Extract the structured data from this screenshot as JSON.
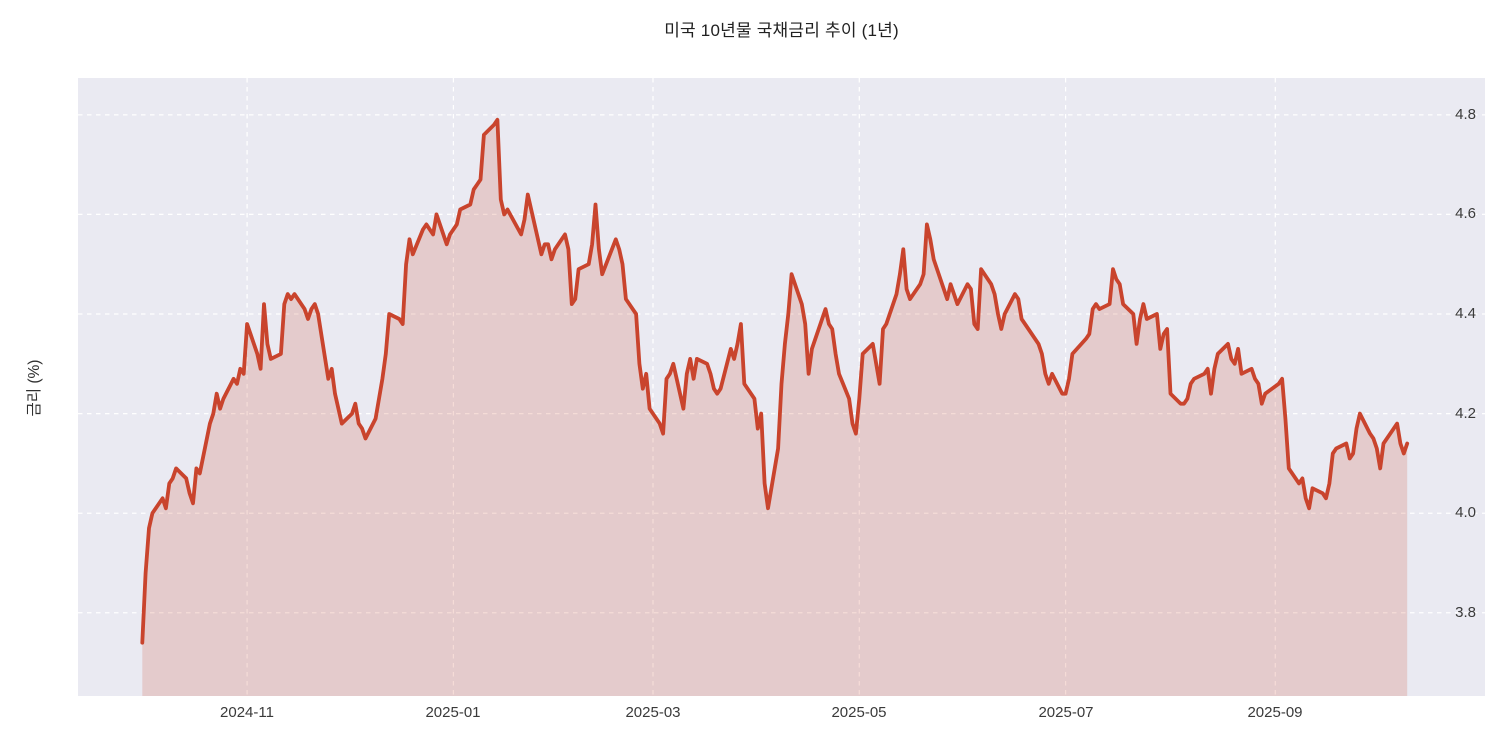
{
  "chart_data": {
    "type": "area",
    "title": "미국 10년물 국채금리 추이 (1년)",
    "xlabel": "",
    "ylabel": "금리 (%)",
    "grid": true,
    "legend": false,
    "xlim": [
      "2024-09-12",
      "2025-11-02"
    ],
    "ylim": [
      3.633,
      4.874
    ],
    "y_ticks": [
      {
        "value": 3.8,
        "label": "3.8"
      },
      {
        "value": 4.0,
        "label": "4.0"
      },
      {
        "value": 4.2,
        "label": "4.2"
      },
      {
        "value": 4.4,
        "label": "4.4"
      },
      {
        "value": 4.6,
        "label": "4.6"
      },
      {
        "value": 4.8,
        "label": "4.8"
      }
    ],
    "x_ticks": [
      {
        "date": "2024-11-01",
        "label": "2024-11"
      },
      {
        "date": "2025-01-01",
        "label": "2025-01"
      },
      {
        "date": "2025-03-01",
        "label": "2025-03"
      },
      {
        "date": "2025-05-01",
        "label": "2025-05"
      },
      {
        "date": "2025-07-01",
        "label": "2025-07"
      },
      {
        "date": "2025-09-01",
        "label": "2025-09"
      }
    ],
    "series": [
      {
        "name": "10년물 국채금리",
        "points": [
          [
            "2024-10-01",
            3.74
          ],
          [
            "2024-10-02",
            3.88
          ],
          [
            "2024-10-03",
            3.97
          ],
          [
            "2024-10-04",
            4.0
          ],
          [
            "2024-10-07",
            4.03
          ],
          [
            "2024-10-08",
            4.01
          ],
          [
            "2024-10-09",
            4.06
          ],
          [
            "2024-10-10",
            4.07
          ],
          [
            "2024-10-11",
            4.09
          ],
          [
            "2024-10-14",
            4.07
          ],
          [
            "2024-10-15",
            4.04
          ],
          [
            "2024-10-16",
            4.02
          ],
          [
            "2024-10-17",
            4.09
          ],
          [
            "2024-10-18",
            4.08
          ],
          [
            "2024-10-21",
            4.18
          ],
          [
            "2024-10-22",
            4.2
          ],
          [
            "2024-10-23",
            4.24
          ],
          [
            "2024-10-24",
            4.21
          ],
          [
            "2024-10-25",
            4.23
          ],
          [
            "2024-10-28",
            4.27
          ],
          [
            "2024-10-29",
            4.26
          ],
          [
            "2024-10-30",
            4.29
          ],
          [
            "2024-10-31",
            4.28
          ],
          [
            "2024-11-01",
            4.38
          ],
          [
            "2024-11-04",
            4.32
          ],
          [
            "2024-11-05",
            4.29
          ],
          [
            "2024-11-06",
            4.42
          ],
          [
            "2024-11-07",
            4.34
          ],
          [
            "2024-11-08",
            4.31
          ],
          [
            "2024-11-11",
            4.32
          ],
          [
            "2024-11-12",
            4.42
          ],
          [
            "2024-11-13",
            4.44
          ],
          [
            "2024-11-14",
            4.43
          ],
          [
            "2024-11-15",
            4.44
          ],
          [
            "2024-11-18",
            4.41
          ],
          [
            "2024-11-19",
            4.39
          ],
          [
            "2024-11-20",
            4.41
          ],
          [
            "2024-11-21",
            4.42
          ],
          [
            "2024-11-22",
            4.4
          ],
          [
            "2024-11-25",
            4.27
          ],
          [
            "2024-11-26",
            4.29
          ],
          [
            "2024-11-27",
            4.24
          ],
          [
            "2024-11-29",
            4.18
          ],
          [
            "2024-12-02",
            4.2
          ],
          [
            "2024-12-03",
            4.22
          ],
          [
            "2024-12-04",
            4.18
          ],
          [
            "2024-12-05",
            4.17
          ],
          [
            "2024-12-06",
            4.15
          ],
          [
            "2024-12-09",
            4.19
          ],
          [
            "2024-12-10",
            4.23
          ],
          [
            "2024-12-11",
            4.27
          ],
          [
            "2024-12-12",
            4.32
          ],
          [
            "2024-12-13",
            4.4
          ],
          [
            "2024-12-16",
            4.39
          ],
          [
            "2024-12-17",
            4.38
          ],
          [
            "2024-12-18",
            4.5
          ],
          [
            "2024-12-19",
            4.55
          ],
          [
            "2024-12-20",
            4.52
          ],
          [
            "2024-12-23",
            4.57
          ],
          [
            "2024-12-24",
            4.58
          ],
          [
            "2024-12-26",
            4.56
          ],
          [
            "2024-12-27",
            4.6
          ],
          [
            "2024-12-30",
            4.54
          ],
          [
            "2024-12-31",
            4.56
          ],
          [
            "2025-01-02",
            4.58
          ],
          [
            "2025-01-03",
            4.61
          ],
          [
            "2025-01-06",
            4.62
          ],
          [
            "2025-01-07",
            4.65
          ],
          [
            "2025-01-08",
            4.66
          ],
          [
            "2025-01-09",
            4.67
          ],
          [
            "2025-01-10",
            4.76
          ],
          [
            "2025-01-13",
            4.78
          ],
          [
            "2025-01-14",
            4.79
          ],
          [
            "2025-01-15",
            4.63
          ],
          [
            "2025-01-16",
            4.6
          ],
          [
            "2025-01-17",
            4.61
          ],
          [
            "2025-01-21",
            4.56
          ],
          [
            "2025-01-22",
            4.59
          ],
          [
            "2025-01-23",
            4.64
          ],
          [
            "2025-01-24",
            4.61
          ],
          [
            "2025-01-27",
            4.52
          ],
          [
            "2025-01-28",
            4.54
          ],
          [
            "2025-01-29",
            4.54
          ],
          [
            "2025-01-30",
            4.51
          ],
          [
            "2025-01-31",
            4.53
          ],
          [
            "2025-02-03",
            4.56
          ],
          [
            "2025-02-04",
            4.53
          ],
          [
            "2025-02-05",
            4.42
          ],
          [
            "2025-02-06",
            4.43
          ],
          [
            "2025-02-07",
            4.49
          ],
          [
            "2025-02-10",
            4.5
          ],
          [
            "2025-02-11",
            4.54
          ],
          [
            "2025-02-12",
            4.62
          ],
          [
            "2025-02-13",
            4.53
          ],
          [
            "2025-02-14",
            4.48
          ],
          [
            "2025-02-18",
            4.55
          ],
          [
            "2025-02-19",
            4.53
          ],
          [
            "2025-02-20",
            4.5
          ],
          [
            "2025-02-21",
            4.43
          ],
          [
            "2025-02-24",
            4.4
          ],
          [
            "2025-02-25",
            4.3
          ],
          [
            "2025-02-26",
            4.25
          ],
          [
            "2025-02-27",
            4.28
          ],
          [
            "2025-02-28",
            4.21
          ],
          [
            "2025-03-03",
            4.18
          ],
          [
            "2025-03-04",
            4.16
          ],
          [
            "2025-03-05",
            4.27
          ],
          [
            "2025-03-06",
            4.28
          ],
          [
            "2025-03-07",
            4.3
          ],
          [
            "2025-03-10",
            4.21
          ],
          [
            "2025-03-11",
            4.28
          ],
          [
            "2025-03-12",
            4.31
          ],
          [
            "2025-03-13",
            4.27
          ],
          [
            "2025-03-14",
            4.31
          ],
          [
            "2025-03-17",
            4.3
          ],
          [
            "2025-03-18",
            4.28
          ],
          [
            "2025-03-19",
            4.25
          ],
          [
            "2025-03-20",
            4.24
          ],
          [
            "2025-03-21",
            4.25
          ],
          [
            "2025-03-24",
            4.33
          ],
          [
            "2025-03-25",
            4.31
          ],
          [
            "2025-03-26",
            4.34
          ],
          [
            "2025-03-27",
            4.38
          ],
          [
            "2025-03-28",
            4.26
          ],
          [
            "2025-03-31",
            4.23
          ],
          [
            "2025-04-01",
            4.17
          ],
          [
            "2025-04-02",
            4.2
          ],
          [
            "2025-04-03",
            4.06
          ],
          [
            "2025-04-04",
            4.01
          ],
          [
            "2025-04-07",
            4.13
          ],
          [
            "2025-04-08",
            4.26
          ],
          [
            "2025-04-09",
            4.34
          ],
          [
            "2025-04-10",
            4.4
          ],
          [
            "2025-04-11",
            4.48
          ],
          [
            "2025-04-14",
            4.42
          ],
          [
            "2025-04-15",
            4.38
          ],
          [
            "2025-04-16",
            4.28
          ],
          [
            "2025-04-17",
            4.33
          ],
          [
            "2025-04-21",
            4.41
          ],
          [
            "2025-04-22",
            4.38
          ],
          [
            "2025-04-23",
            4.37
          ],
          [
            "2025-04-24",
            4.32
          ],
          [
            "2025-04-25",
            4.28
          ],
          [
            "2025-04-28",
            4.23
          ],
          [
            "2025-04-29",
            4.18
          ],
          [
            "2025-04-30",
            4.16
          ],
          [
            "2025-05-01",
            4.23
          ],
          [
            "2025-05-02",
            4.32
          ],
          [
            "2025-05-05",
            4.34
          ],
          [
            "2025-05-06",
            4.3
          ],
          [
            "2025-05-07",
            4.26
          ],
          [
            "2025-05-08",
            4.37
          ],
          [
            "2025-05-09",
            4.38
          ],
          [
            "2025-05-12",
            4.44
          ],
          [
            "2025-05-13",
            4.48
          ],
          [
            "2025-05-14",
            4.53
          ],
          [
            "2025-05-15",
            4.45
          ],
          [
            "2025-05-16",
            4.43
          ],
          [
            "2025-05-19",
            4.46
          ],
          [
            "2025-05-20",
            4.48
          ],
          [
            "2025-05-21",
            4.58
          ],
          [
            "2025-05-22",
            4.55
          ],
          [
            "2025-05-23",
            4.51
          ],
          [
            "2025-05-27",
            4.43
          ],
          [
            "2025-05-28",
            4.46
          ],
          [
            "2025-05-29",
            4.44
          ],
          [
            "2025-05-30",
            4.42
          ],
          [
            "2025-06-02",
            4.46
          ],
          [
            "2025-06-03",
            4.45
          ],
          [
            "2025-06-04",
            4.38
          ],
          [
            "2025-06-05",
            4.37
          ],
          [
            "2025-06-06",
            4.49
          ],
          [
            "2025-06-09",
            4.46
          ],
          [
            "2025-06-10",
            4.44
          ],
          [
            "2025-06-11",
            4.4
          ],
          [
            "2025-06-12",
            4.37
          ],
          [
            "2025-06-13",
            4.4
          ],
          [
            "2025-06-16",
            4.44
          ],
          [
            "2025-06-17",
            4.43
          ],
          [
            "2025-06-18",
            4.39
          ],
          [
            "2025-06-20",
            4.37
          ],
          [
            "2025-06-23",
            4.34
          ],
          [
            "2025-06-24",
            4.32
          ],
          [
            "2025-06-25",
            4.28
          ],
          [
            "2025-06-26",
            4.26
          ],
          [
            "2025-06-27",
            4.28
          ],
          [
            "2025-06-30",
            4.24
          ],
          [
            "2025-07-01",
            4.24
          ],
          [
            "2025-07-02",
            4.27
          ],
          [
            "2025-07-03",
            4.32
          ],
          [
            "2025-07-07",
            4.35
          ],
          [
            "2025-07-08",
            4.36
          ],
          [
            "2025-07-09",
            4.41
          ],
          [
            "2025-07-10",
            4.42
          ],
          [
            "2025-07-11",
            4.41
          ],
          [
            "2025-07-14",
            4.42
          ],
          [
            "2025-07-15",
            4.49
          ],
          [
            "2025-07-16",
            4.47
          ],
          [
            "2025-07-17",
            4.46
          ],
          [
            "2025-07-18",
            4.42
          ],
          [
            "2025-07-21",
            4.4
          ],
          [
            "2025-07-22",
            4.34
          ],
          [
            "2025-07-23",
            4.39
          ],
          [
            "2025-07-24",
            4.42
          ],
          [
            "2025-07-25",
            4.39
          ],
          [
            "2025-07-28",
            4.4
          ],
          [
            "2025-07-29",
            4.33
          ],
          [
            "2025-07-30",
            4.36
          ],
          [
            "2025-07-31",
            4.37
          ],
          [
            "2025-08-01",
            4.24
          ],
          [
            "2025-08-04",
            4.22
          ],
          [
            "2025-08-05",
            4.22
          ],
          [
            "2025-08-06",
            4.23
          ],
          [
            "2025-08-07",
            4.26
          ],
          [
            "2025-08-08",
            4.27
          ],
          [
            "2025-08-11",
            4.28
          ],
          [
            "2025-08-12",
            4.29
          ],
          [
            "2025-08-13",
            4.24
          ],
          [
            "2025-08-14",
            4.29
          ],
          [
            "2025-08-15",
            4.32
          ],
          [
            "2025-08-18",
            4.34
          ],
          [
            "2025-08-19",
            4.31
          ],
          [
            "2025-08-20",
            4.3
          ],
          [
            "2025-08-21",
            4.33
          ],
          [
            "2025-08-22",
            4.28
          ],
          [
            "2025-08-25",
            4.29
          ],
          [
            "2025-08-26",
            4.27
          ],
          [
            "2025-08-27",
            4.26
          ],
          [
            "2025-08-28",
            4.22
          ],
          [
            "2025-08-29",
            4.24
          ],
          [
            "2025-09-02",
            4.26
          ],
          [
            "2025-09-03",
            4.27
          ],
          [
            "2025-09-04",
            4.19
          ],
          [
            "2025-09-05",
            4.09
          ],
          [
            "2025-09-08",
            4.06
          ],
          [
            "2025-09-09",
            4.07
          ],
          [
            "2025-09-10",
            4.03
          ],
          [
            "2025-09-11",
            4.01
          ],
          [
            "2025-09-12",
            4.05
          ],
          [
            "2025-09-15",
            4.04
          ],
          [
            "2025-09-16",
            4.03
          ],
          [
            "2025-09-17",
            4.06
          ],
          [
            "2025-09-18",
            4.12
          ],
          [
            "2025-09-19",
            4.13
          ],
          [
            "2025-09-22",
            4.14
          ],
          [
            "2025-09-23",
            4.11
          ],
          [
            "2025-09-24",
            4.12
          ],
          [
            "2025-09-25",
            4.17
          ],
          [
            "2025-09-26",
            4.2
          ],
          [
            "2025-09-29",
            4.16
          ],
          [
            "2025-09-30",
            4.15
          ],
          [
            "2025-10-01",
            4.13
          ],
          [
            "2025-10-02",
            4.09
          ],
          [
            "2025-10-03",
            4.14
          ],
          [
            "2025-10-06",
            4.17
          ],
          [
            "2025-10-07",
            4.18
          ],
          [
            "2025-10-08",
            4.14
          ],
          [
            "2025-10-09",
            4.12
          ],
          [
            "2025-10-10",
            4.14
          ]
        ]
      }
    ]
  },
  "style": {
    "page_bg": "#ffffff",
    "plot_bg": "#eaeaf2",
    "grid_color": "#ffffff",
    "line_color": "#c9442d",
    "fill_color": "rgba(201,68,45,0.19)",
    "tick_color": "#3a3a3a",
    "title_color": "#212121"
  }
}
